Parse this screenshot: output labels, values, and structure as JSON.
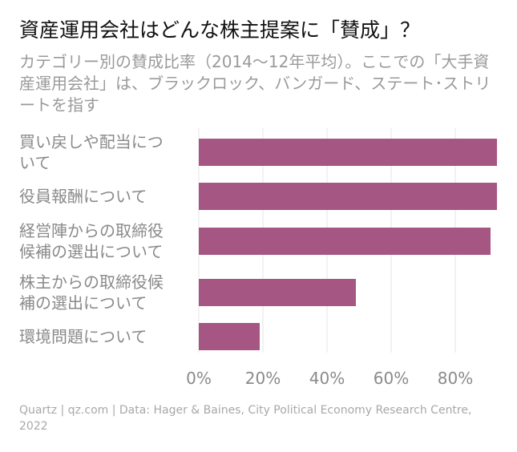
{
  "title": "資産運用会社はどんな株主提案に「賛成」？",
  "subtitle": "カテゴリー別の賛成比率（2014〜12年平均）。ここでの「大手資産運用会社」は、ブラックロック、バンガード、ステート･ストリートを指す",
  "source": "Quartz | qz.com | Data: Hager & Baines, City Political Economy Research Centre, 2022",
  "colors": {
    "bar": "#a65683",
    "grid": "#e6e6e6",
    "label": "#8a8a8a"
  },
  "chart_data": {
    "type": "bar",
    "orientation": "horizontal",
    "categories": [
      [
        "買い戻しや配当につ",
        "いて"
      ],
      [
        "役員報酬について"
      ],
      [
        "経営陣からの取締役",
        "候補の選出について"
      ],
      [
        "株主からの取締役候",
        "補の選出について"
      ],
      [
        "環境問題について"
      ]
    ],
    "values": [
      93,
      93,
      91,
      49,
      19
    ],
    "xlim": [
      0,
      93
    ],
    "xticks": [
      0,
      20,
      40,
      60,
      80
    ],
    "xtick_labels": [
      "0%",
      "20%",
      "40%",
      "60%",
      "80%"
    ],
    "grid": true
  }
}
